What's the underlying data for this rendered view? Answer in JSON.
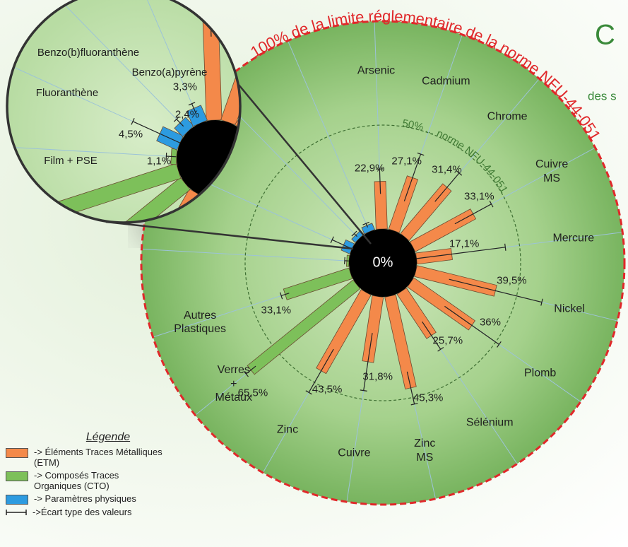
{
  "chart_data": {
    "type": "polar_bar",
    "title": "C",
    "subtitle": "des s",
    "categories": [
      "Arsenic",
      "Cadmium",
      "Chrome",
      "Cuivre MS",
      "Mercure",
      "Nickel",
      "Plomb",
      "Sélénium",
      "Zinc MS",
      "Cuivre",
      "Zinc",
      "Verres + Métaux",
      "Autres Plastiques",
      "Film + PSE",
      "Fluoranthène",
      "Benzo(b)fluoranthène",
      "Benzo(a)pyrène"
    ],
    "series": [
      {
        "name": "-> Éléments Traces Métalliques (ETM)",
        "color": "#f4894a",
        "values": [
          22.9,
          27.1,
          31.4,
          33.1,
          17.1,
          39.5,
          36,
          25.7,
          45.3,
          31.8,
          43.5,
          null,
          null,
          null,
          null,
          null,
          null
        ],
        "value_labels": [
          "22,9%",
          "27,1%",
          "31,4%",
          "33,1%",
          "17,1%",
          "39,5%",
          "36%",
          "25,7%",
          "45,3%",
          "31,8%",
          "43,5%",
          null,
          null,
          null,
          null,
          null,
          null
        ],
        "errors": [
          6,
          12,
          9,
          10,
          26,
          23,
          16,
          8,
          8,
          14,
          12,
          null,
          null,
          null,
          null,
          null,
          null
        ]
      },
      {
        "name": "-> Composés Traces Organiques (CTO)",
        "color": "#7dc05a",
        "values": [
          null,
          null,
          null,
          null,
          null,
          null,
          null,
          null,
          null,
          null,
          null,
          65.5,
          33.1,
          1.1,
          null,
          null,
          null
        ],
        "value_labels": [
          null,
          null,
          null,
          null,
          null,
          null,
          null,
          null,
          null,
          null,
          null,
          "65,5%",
          "33,1%",
          "1,1%",
          null,
          null,
          null
        ],
        "errors": [
          null,
          null,
          null,
          null,
          null,
          null,
          null,
          null,
          null,
          null,
          null,
          3,
          2,
          1,
          null,
          null,
          null
        ]
      },
      {
        "name": "-> Paramètres physiques",
        "color": "#2d9be0",
        "values": [
          null,
          null,
          null,
          null,
          null,
          null,
          null,
          null,
          null,
          null,
          null,
          null,
          null,
          null,
          4.5,
          2.4,
          3.3
        ],
        "value_labels": [
          null,
          null,
          null,
          null,
          null,
          null,
          null,
          null,
          null,
          null,
          null,
          null,
          null,
          null,
          "4,5%",
          "2,4%",
          "3,3%"
        ],
        "errors": [
          null,
          null,
          null,
          null,
          null,
          null,
          null,
          null,
          null,
          null,
          null,
          null,
          null,
          null,
          6,
          1,
          1
        ]
      }
    ],
    "rlim": [
      0,
      100
    ],
    "rticks": [
      {
        "value": 0,
        "label": "0%"
      },
      {
        "value": 50,
        "label": "50% ... norme NFU-44-051"
      },
      {
        "value": 100,
        "label": "100% de la limite réglementaire de la norme NFU-44-051"
      }
    ],
    "legend_title": "Légende",
    "error_legend": "->Écart type des valeurs"
  }
}
